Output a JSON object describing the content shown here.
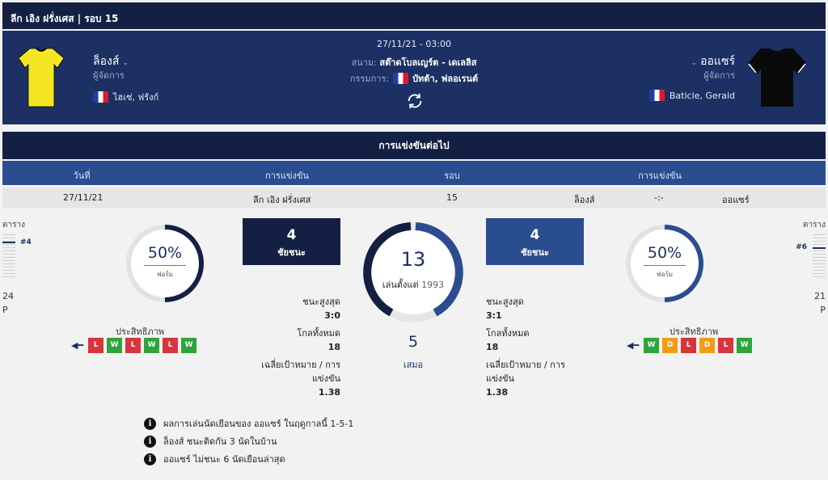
{
  "league_bar": {
    "title": "ลีก เอิง ฝรั่งเศส | รอบ 15"
  },
  "match": {
    "datetime": "27/11/21 - 03:00",
    "venue_label": "สนาม:",
    "venue": "สต๊าดโบลเญร์ต - เดเลลิส",
    "referee_label": "กรรมการ:",
    "referee": "บัทต้า, ฟลอเรนต์",
    "home": {
      "name": "ล็องส์",
      "manager_label": "ผู้จัดการ",
      "manager": "ไฮเซ่, ฟรังก์",
      "shirt_color": "#f5e625",
      "shirt_trim": "#000000"
    },
    "away": {
      "name": "ออแซร์",
      "manager_label": "ผู้จัดการ",
      "manager": "Baticle, Gerald",
      "shirt_color": "#0a0a0a",
      "shirt_trim": "#ffffff"
    }
  },
  "next_match": {
    "title": "การแข่งขันต่อไป",
    "headers": {
      "date": "วันที่",
      "competition": "การแข่งขัน",
      "round": "รอบ",
      "match": "การแข่งขัน"
    },
    "row": {
      "date": "27/11/21",
      "competition": "ลีก เอิง ฝรั่งเศส",
      "round": "15",
      "home": "ล็องส์",
      "score": "-:-",
      "away": "ออแซร์"
    }
  },
  "home_stats": {
    "table_label": "ตาราง",
    "rank": "#4",
    "points": "24",
    "points_unit": "P",
    "form_pct": "50%",
    "form_pct_value": 0.5,
    "form_sub": "ฟอร์ม",
    "performance_label": "ประสิทธิภาพ",
    "form": [
      "L",
      "W",
      "L",
      "W",
      "L",
      "W"
    ],
    "wins": "4",
    "wins_label": "ชัยชนะ",
    "biggest_win_label": "ชนะสูงสุด",
    "biggest_win": "3:0",
    "total_goals_label": "โกลทั้งหมด",
    "total_goals": "18",
    "avg_label": "เฉลี่ยเป้าหมาย / การแข่งขัน",
    "avg": "1.38"
  },
  "away_stats": {
    "table_label": "ตาราง",
    "rank": "#6",
    "points": "21",
    "points_unit": "P",
    "form_pct": "50%",
    "form_pct_value": 0.5,
    "form_sub": "ฟอร์ม",
    "performance_label": "ประสิทธิภาพ",
    "form": [
      "W",
      "D",
      "L",
      "D",
      "L",
      "W"
    ],
    "wins": "4",
    "wins_label": "ชัยชนะ",
    "biggest_win_label": "ชนะสูงสุด",
    "biggest_win": "3:1",
    "total_goals_label": "โกลทั้งหมด",
    "total_goals": "18",
    "avg_label": "เฉลี่ยเป้าหมาย / การแข่งขัน",
    "avg": "1.38"
  },
  "head_to_head": {
    "total": "13",
    "since_label": "เล่นตั้งแต่",
    "since_year": "1993",
    "draws": "5",
    "draws_label": "เสมอ"
  },
  "facts": [
    {
      "text": "ผลการเล่นนัดเยือนของ ออแซร์ ในฤดูกาลนี้ 1-5-1"
    },
    {
      "text": "ล็องส์ ชนะติดกัน 3 นัดในบ้าน"
    },
    {
      "text": "ออแซร์ ไม่ชนะ 6 นัดเยือนล่าสุด"
    }
  ],
  "colors": {
    "navy": "#1c3063",
    "navy_dark": "#132044",
    "blue": "#2a4d8f",
    "win": "#2fa43a",
    "loss": "#d8343c",
    "draw": "#f39c12"
  }
}
